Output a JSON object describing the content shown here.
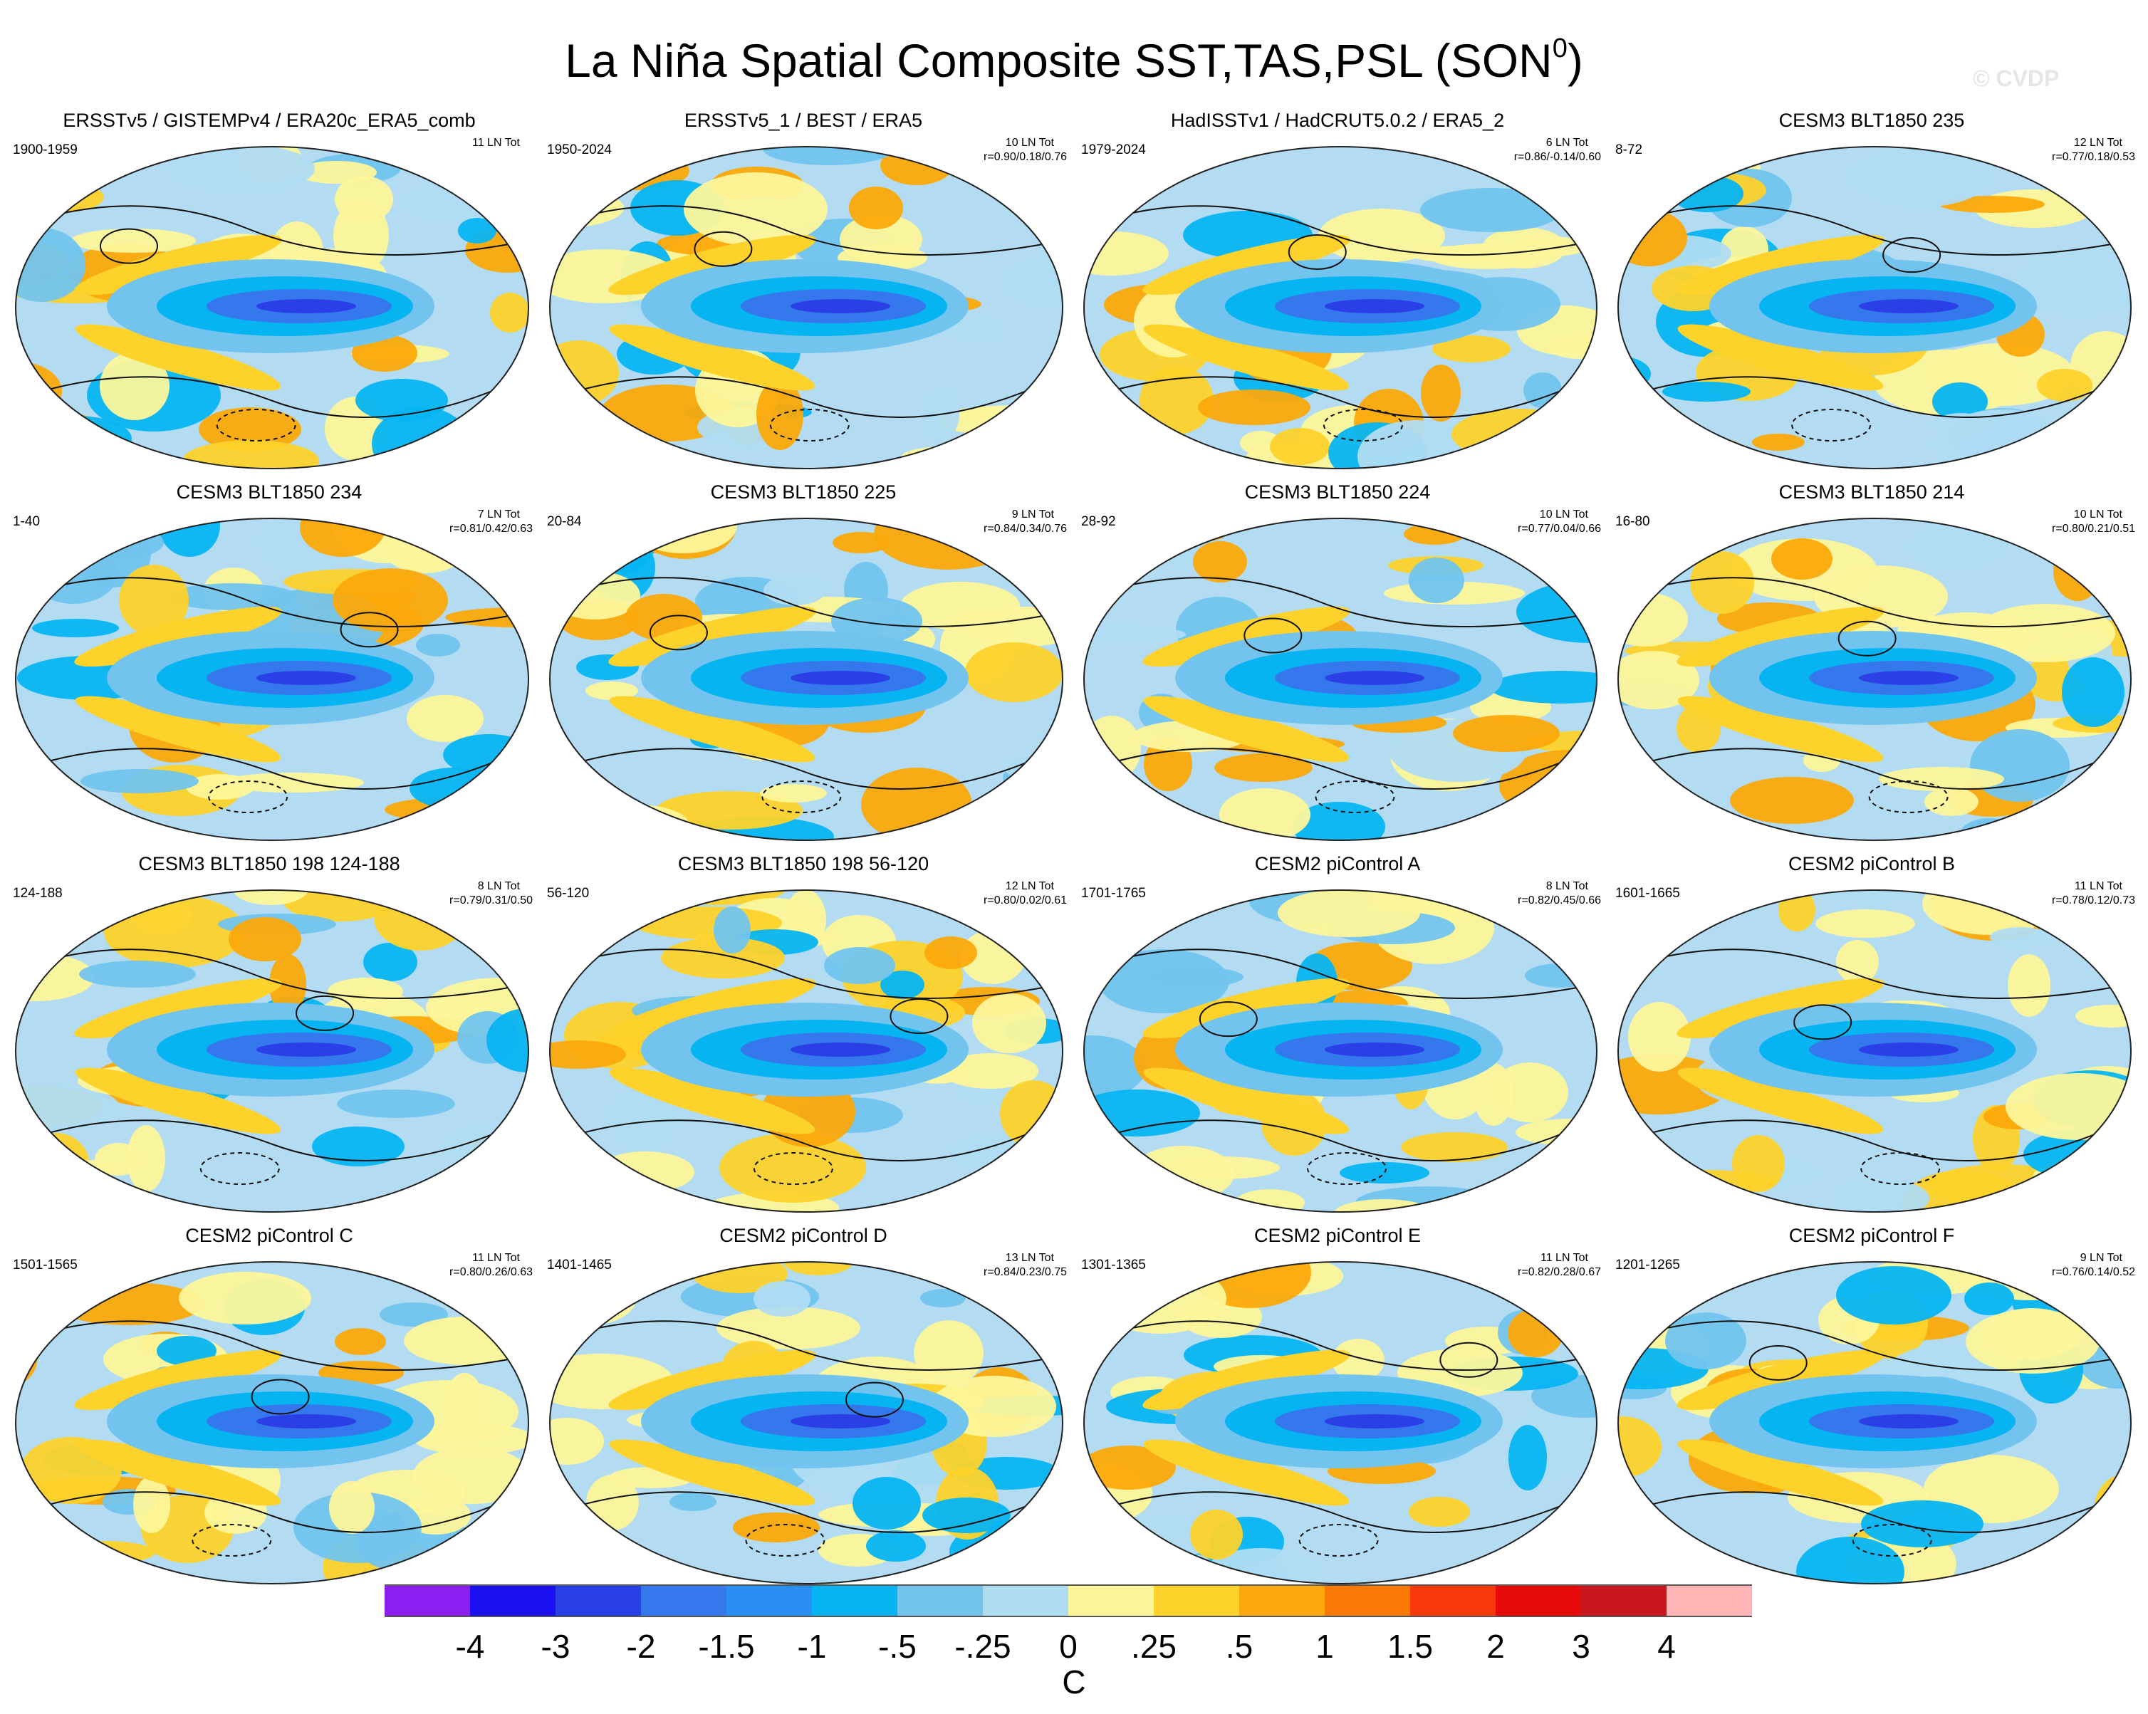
{
  "figure": {
    "title": "La Niña Spatial Composite SST,TAS,PSL (SON",
    "title_sup": "0",
    "title_close": ")",
    "watermark": "© CVDP"
  },
  "panels": [
    {
      "title": "ERSSTv5 / GISTEMPv4 / ERA20c_ERA5_comb",
      "years": "1900-1959",
      "count": "11 LN Tot",
      "corr": ""
    },
    {
      "title": "ERSSTv5_1 / BEST / ERA5",
      "years": "1950-2024",
      "count": "10 LN Tot",
      "corr": "r=0.90/0.18/0.76"
    },
    {
      "title": "HadISSTv1 / HadCRUT5.0.2 / ERA5_2",
      "years": "1979-2024",
      "count": "6 LN Tot",
      "corr": "r=0.86/-0.14/0.60"
    },
    {
      "title": "CESM3 BLT1850 235",
      "years": "8-72",
      "count": "12 LN Tot",
      "corr": "r=0.77/0.18/0.53"
    },
    {
      "title": "CESM3 BLT1850 234",
      "years": "1-40",
      "count": "7 LN Tot",
      "corr": "r=0.81/0.42/0.63"
    },
    {
      "title": "CESM3 BLT1850 225",
      "years": "20-84",
      "count": "9 LN Tot",
      "corr": "r=0.84/0.34/0.76"
    },
    {
      "title": "CESM3 BLT1850 224",
      "years": "28-92",
      "count": "10 LN Tot",
      "corr": "r=0.77/0.04/0.66"
    },
    {
      "title": "CESM3 BLT1850 214",
      "years": "16-80",
      "count": "10 LN Tot",
      "corr": "r=0.80/0.21/0.51"
    },
    {
      "title": "CESM3 BLT1850 198 124-188",
      "years": "124-188",
      "count": "8 LN Tot",
      "corr": "r=0.79/0.31/0.50"
    },
    {
      "title": "CESM3 BLT1850 198 56-120",
      "years": "56-120",
      "count": "12 LN Tot",
      "corr": "r=0.80/0.02/0.61"
    },
    {
      "title": "CESM2 piControl A",
      "years": "1701-1765",
      "count": "8 LN Tot",
      "corr": "r=0.82/0.45/0.66"
    },
    {
      "title": "CESM2 piControl B",
      "years": "1601-1665",
      "count": "11 LN Tot",
      "corr": "r=0.78/0.12/0.73"
    },
    {
      "title": "CESM2 piControl C",
      "years": "1501-1565",
      "count": "11 LN Tot",
      "corr": "r=0.80/0.26/0.63"
    },
    {
      "title": "CESM2 piControl D",
      "years": "1401-1465",
      "count": "13 LN Tot",
      "corr": "r=0.84/0.23/0.75"
    },
    {
      "title": "CESM2 piControl E",
      "years": "1301-1365",
      "count": "11 LN Tot",
      "corr": "r=0.82/0.28/0.67"
    },
    {
      "title": "CESM2 piControl F",
      "years": "1201-1265",
      "count": "9 LN Tot",
      "corr": "r=0.76/0.14/0.52"
    }
  ],
  "colorbar": {
    "colors": [
      "#8a1ff0",
      "#1c10f2",
      "#2a40e6",
      "#3577ec",
      "#2a8ff2",
      "#06b4f2",
      "#72c4ee",
      "#b0dcf2",
      "#fdf59a",
      "#fdd22b",
      "#fba90a",
      "#fb7a06",
      "#fa3a0a",
      "#e60a0a",
      "#c8181e",
      "#ffb5b5"
    ],
    "labels": [
      "-4",
      "-3",
      "-2",
      "-1.5",
      "-1",
      "-.5",
      "-.25",
      "0",
      ".25",
      ".5",
      "1",
      "1.5",
      "2",
      "3",
      "4"
    ],
    "unit": "C"
  }
}
